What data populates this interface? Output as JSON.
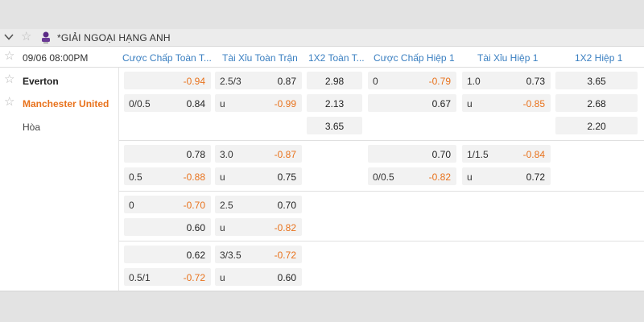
{
  "league": {
    "title": "*GIẢI NGOẠI HẠNG ANH"
  },
  "match": {
    "datetime": "09/06 08:00PM",
    "teams": [
      "Everton",
      "Manchester United",
      "Hòa"
    ]
  },
  "columns": [
    "Cược Chấp Toàn T...",
    "Tài Xỉu Toàn Trận",
    "1X2 Toàn T...",
    "Cược Chấp Hiệp 1",
    "Tài Xỉu Hiệp 1",
    "1X2 Hiệp 1"
  ],
  "odds": {
    "g1": {
      "ah_ft": [
        {
          "line": "",
          "odds": "-0.94"
        },
        {
          "line": "0/0.5",
          "odds": "0.84"
        }
      ],
      "ou_ft": [
        {
          "line": "2.5/3",
          "odds": "0.87"
        },
        {
          "line": "u",
          "odds": "-0.99"
        }
      ],
      "x12_ft": [
        "2.98",
        "2.13",
        "3.65"
      ],
      "ah_h1": [
        {
          "line": "0",
          "odds": "-0.79"
        },
        {
          "line": "",
          "odds": "0.67"
        }
      ],
      "ou_h1": [
        {
          "line": "1.0",
          "odds": "0.73"
        },
        {
          "line": "u",
          "odds": "-0.85"
        }
      ],
      "x12_h1": [
        "3.65",
        "2.68",
        "2.20"
      ]
    },
    "g2": {
      "ah_ft": [
        {
          "line": "",
          "odds": "0.78"
        },
        {
          "line": "0.5",
          "odds": "-0.88"
        }
      ],
      "ou_ft": [
        {
          "line": "3.0",
          "odds": "-0.87"
        },
        {
          "line": "u",
          "odds": "0.75"
        }
      ],
      "ah_h1": [
        {
          "line": "",
          "odds": "0.70"
        },
        {
          "line": "0/0.5",
          "odds": "-0.82"
        }
      ],
      "ou_h1": [
        {
          "line": "1/1.5",
          "odds": "-0.84"
        },
        {
          "line": "u",
          "odds": "0.72"
        }
      ]
    },
    "g3": {
      "ah_ft": [
        {
          "line": "0",
          "odds": "-0.70"
        },
        {
          "line": "",
          "odds": "0.60"
        }
      ],
      "ou_ft": [
        {
          "line": "2.5",
          "odds": "0.70"
        },
        {
          "line": "u",
          "odds": "-0.82"
        }
      ]
    },
    "g4": {
      "ah_ft": [
        {
          "line": "",
          "odds": "0.62"
        },
        {
          "line": "0.5/1",
          "odds": "-0.72"
        }
      ],
      "ou_ft": [
        {
          "line": "3/3.5",
          "odds": "-0.72"
        },
        {
          "line": "u",
          "odds": "0.60"
        }
      ]
    }
  },
  "colors": {
    "accent_blue": "#3a7fc1",
    "negative_orange": "#e8721c",
    "cell_bg": "#f2f2f2"
  }
}
